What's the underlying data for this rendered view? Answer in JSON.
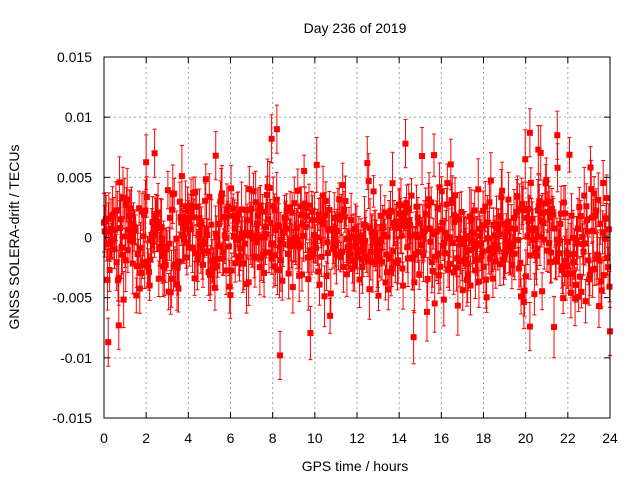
{
  "chart_data": {
    "type": "scatter",
    "title": "Day 236 of 2019",
    "xlabel": "GPS time / hours",
    "ylabel": "GNSS SOLERA-drift / TECUs",
    "xlim": [
      0,
      24
    ],
    "ylim": [
      -0.015,
      0.015
    ],
    "x_ticks": [
      "0",
      "2",
      "4",
      "6",
      "8",
      "10",
      "12",
      "14",
      "16",
      "18",
      "20",
      "22",
      "24"
    ],
    "y_ticks": [
      "-0.015",
      "-0.01",
      "-0.005",
      "0",
      "0.005",
      "0.01",
      "0.015"
    ],
    "grid": true,
    "error_bars": true,
    "marker": "square",
    "colors": {
      "series": "#ff0000",
      "grid": "#a0a0a0",
      "axes": "#000000"
    },
    "series_summary": {
      "sample_interval_hours": 0.0333,
      "typical_spread": [
        -0.005,
        0.005
      ],
      "typical_error_bar": 0.002,
      "notable_points": [
        {
          "x": 0.2,
          "y": -0.0087
        },
        {
          "x": 0.7,
          "y": -0.0073
        },
        {
          "x": 2.4,
          "y": 0.007
        },
        {
          "x": 5.3,
          "y": 0.0068
        },
        {
          "x": 7.95,
          "y": 0.0082
        },
        {
          "x": 8.2,
          "y": 0.009
        },
        {
          "x": 8.35,
          "y": -0.0098
        },
        {
          "x": 14.3,
          "y": 0.0078
        },
        {
          "x": 20.2,
          "y": 0.0087
        },
        {
          "x": 20.2,
          "y": -0.0074
        },
        {
          "x": 20.6,
          "y": 0.0073
        },
        {
          "x": 21.5,
          "y": 0.0085
        },
        {
          "x": 24.0,
          "y": -0.0078
        }
      ]
    }
  }
}
